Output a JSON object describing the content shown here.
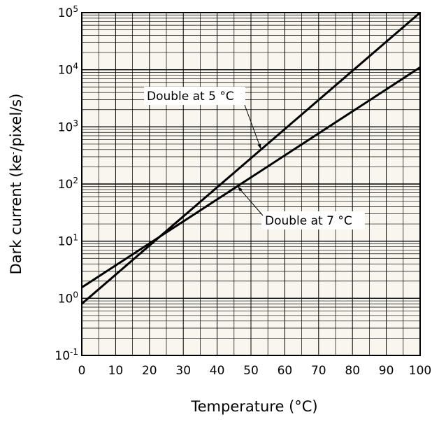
{
  "chart_data": {
    "type": "line",
    "xlabel": "Temperature (°C)",
    "ylabel_parts": [
      "Dark current (ke",
      "-",
      "/pixel/s)"
    ],
    "xlim": [
      0,
      100
    ],
    "ylim": [
      0.1,
      100000
    ],
    "yscale": "log",
    "grid": true,
    "plot_background": "#f8f6ee",
    "x_ticks": [
      "0",
      "10",
      "20",
      "30",
      "40",
      "50",
      "60",
      "70",
      "80",
      "90",
      "100"
    ],
    "y_ticks": [
      {
        "base": "10",
        "exp": "-1"
      },
      {
        "base": "10",
        "exp": "0"
      },
      {
        "base": "10",
        "exp": "1"
      },
      {
        "base": "10",
        "exp": "2"
      },
      {
        "base": "10",
        "exp": "3"
      },
      {
        "base": "10",
        "exp": "4"
      },
      {
        "base": "10",
        "exp": "5"
      }
    ],
    "series": [
      {
        "x": [
          0,
          100
        ],
        "y": [
          0.8,
          100000
        ],
        "color": "#000000"
      },
      {
        "x": [
          0,
          100
        ],
        "y": [
          1.55,
          11000
        ],
        "color": "#000000"
      }
    ],
    "annotations": [
      {
        "text": "Double at 5 °C",
        "series_index": 0,
        "target_x": 53
      },
      {
        "text": "Double at 7 °C",
        "series_index": 1,
        "target_x": 46
      }
    ]
  }
}
